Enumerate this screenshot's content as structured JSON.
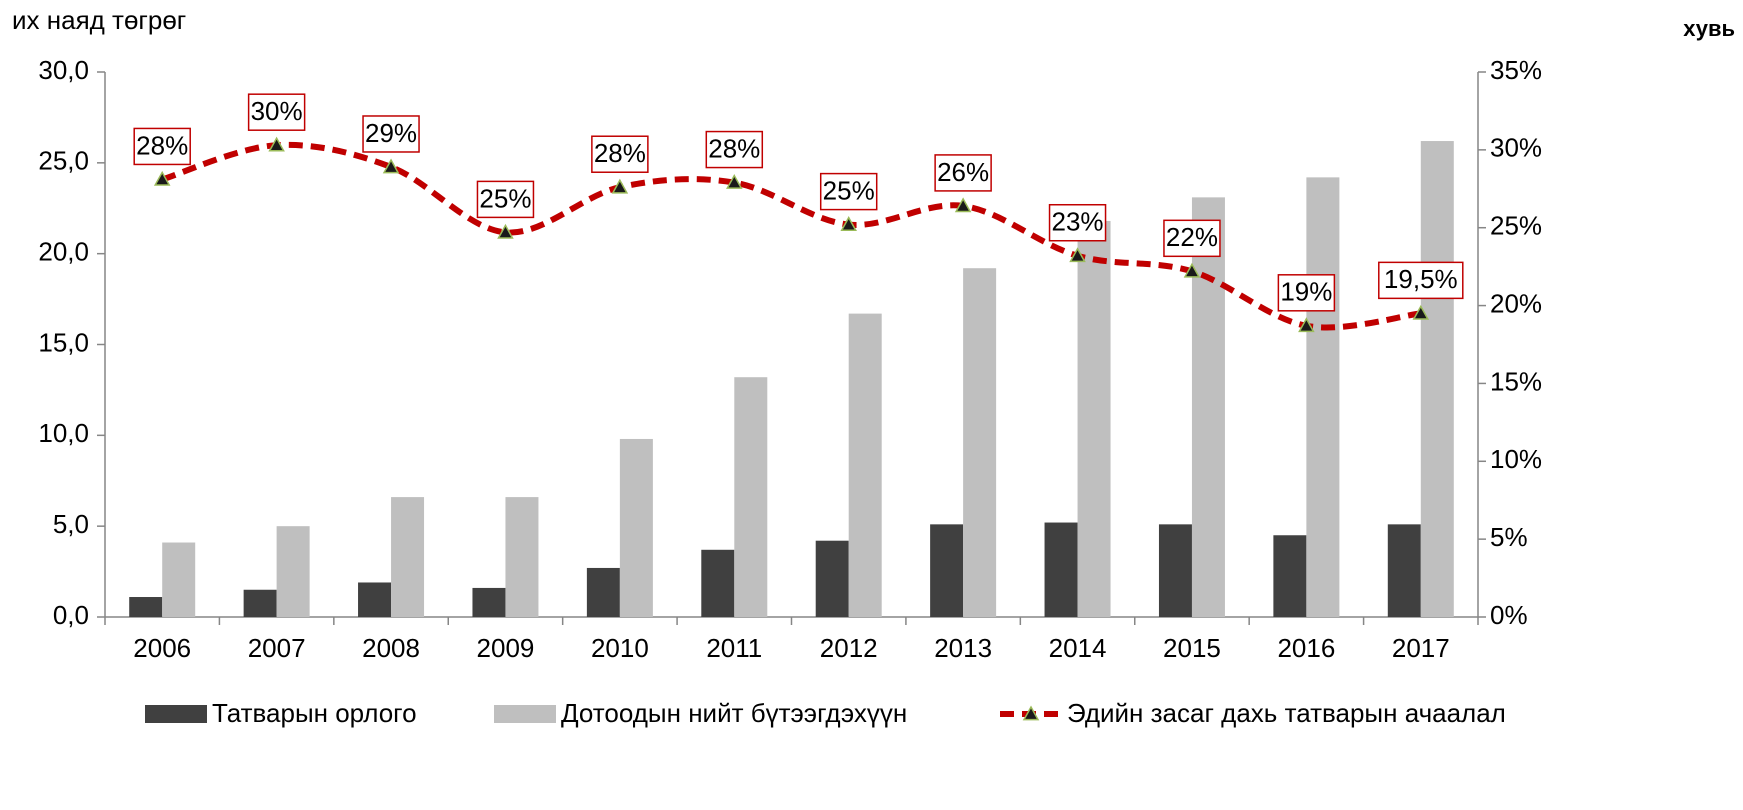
{
  "chart_data": {
    "type": "bar-line",
    "y_label": "их наяд төгрөг",
    "y2_label": "хувь",
    "categories": [
      "2006",
      "2007",
      "2008",
      "2009",
      "2010",
      "2011",
      "2012",
      "2013",
      "2014",
      "2015",
      "2016",
      "2017"
    ],
    "series": [
      {
        "name": "Татварын орлого",
        "type": "bar",
        "color": "#404040",
        "values": [
          1.1,
          1.5,
          1.9,
          1.6,
          2.7,
          3.7,
          4.2,
          5.1,
          5.2,
          5.1,
          4.5,
          5.1
        ]
      },
      {
        "name": "Дотоодын нийт бүтээгдэхүүн",
        "type": "bar",
        "color": "#bfbfbf",
        "values": [
          4.1,
          5.0,
          6.6,
          6.6,
          9.8,
          13.2,
          16.7,
          19.2,
          21.8,
          23.1,
          24.2,
          26.2
        ]
      },
      {
        "name": "Эдийн засаг дахь татварын ачаалал",
        "type": "line",
        "axis": "y2",
        "color": "#c00000",
        "marker_color": "#1a1a1a",
        "values": [
          28.1,
          30.3,
          28.9,
          24.7,
          27.6,
          27.9,
          25.2,
          26.4,
          23.2,
          22.2,
          18.7,
          19.5
        ],
        "value_labels": [
          "28%",
          "30%",
          "29%",
          "25%",
          "28%",
          "28%",
          "25%",
          "26%",
          "23%",
          "22%",
          "19%",
          "19,5%"
        ]
      }
    ],
    "ylim": [
      0,
      30
    ],
    "yticks": [
      {
        "value": 0,
        "label": "0,0"
      },
      {
        "value": 5,
        "label": "5,0"
      },
      {
        "value": 10,
        "label": "10,0"
      },
      {
        "value": 15,
        "label": "15,0"
      },
      {
        "value": 20,
        "label": "20,0"
      },
      {
        "value": 25,
        "label": "25,0"
      },
      {
        "value": 30,
        "label": "30,0"
      }
    ],
    "y2lim": [
      0,
      35
    ],
    "y2ticks": [
      {
        "value": 0,
        "label": "0%"
      },
      {
        "value": 5,
        "label": "5%"
      },
      {
        "value": 10,
        "label": "10%"
      },
      {
        "value": 15,
        "label": "15%"
      },
      {
        "value": 20,
        "label": "20%"
      },
      {
        "value": 25,
        "label": "25%"
      },
      {
        "value": 30,
        "label": "30%"
      },
      {
        "value": 35,
        "label": "35%"
      }
    ],
    "grid": false,
    "legend": "bottom"
  }
}
